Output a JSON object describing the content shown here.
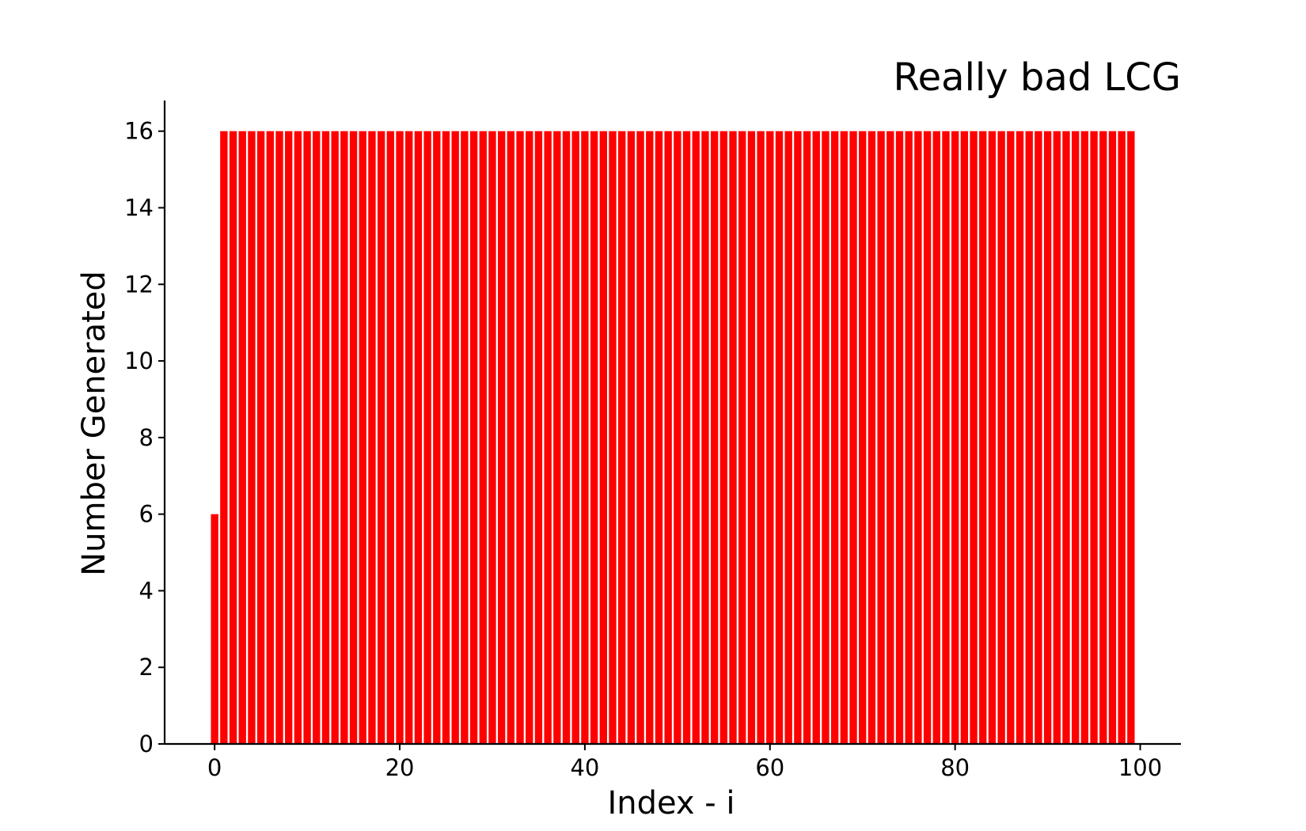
{
  "chart_data": {
    "type": "bar",
    "title": "Really bad LCG",
    "xlabel": "Index - i",
    "ylabel": "Number Generated",
    "x_start": 0,
    "values": [
      6,
      16,
      16,
      16,
      16,
      16,
      16,
      16,
      16,
      16,
      16,
      16,
      16,
      16,
      16,
      16,
      16,
      16,
      16,
      16,
      16,
      16,
      16,
      16,
      16,
      16,
      16,
      16,
      16,
      16,
      16,
      16,
      16,
      16,
      16,
      16,
      16,
      16,
      16,
      16,
      16,
      16,
      16,
      16,
      16,
      16,
      16,
      16,
      16,
      16,
      16,
      16,
      16,
      16,
      16,
      16,
      16,
      16,
      16,
      16,
      16,
      16,
      16,
      16,
      16,
      16,
      16,
      16,
      16,
      16,
      16,
      16,
      16,
      16,
      16,
      16,
      16,
      16,
      16,
      16,
      16,
      16,
      16,
      16,
      16,
      16,
      16,
      16,
      16,
      16,
      16,
      16,
      16,
      16,
      16,
      16,
      16,
      16,
      16,
      16
    ],
    "xlim": [
      -5.4,
      104.4
    ],
    "ylim": [
      0,
      16.8
    ],
    "xticks": [
      0,
      20,
      40,
      60,
      80,
      100
    ],
    "yticks": [
      0,
      2,
      4,
      6,
      8,
      10,
      12,
      14,
      16
    ],
    "bar_width": 0.8,
    "bar_color": "#ff0000",
    "grid": false,
    "spines": [
      "left",
      "bottom"
    ]
  }
}
